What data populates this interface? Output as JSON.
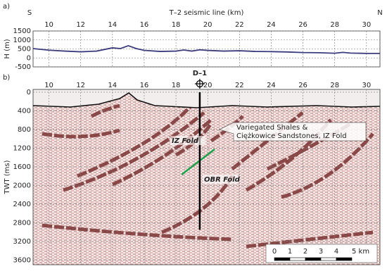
{
  "chart_data": [
    {
      "type": "line",
      "panel_label": "a)",
      "x_label": "T–2 seismic line (km)",
      "y_label": "H (m)",
      "end_labels": [
        "S",
        "N"
      ],
      "x": [
        9,
        10,
        11,
        12,
        13,
        14,
        14.5,
        15,
        15.5,
        16,
        17,
        18,
        18.5,
        19,
        19.5,
        20,
        21,
        22,
        23,
        24,
        25,
        26,
        27,
        28,
        28.5,
        29,
        30,
        30.85
      ],
      "series": [
        {
          "color": "#3b3b7e",
          "values": [
            520,
            430,
            380,
            340,
            380,
            560,
            520,
            680,
            520,
            420,
            360,
            380,
            440,
            380,
            450,
            420,
            380,
            400,
            360,
            350,
            330,
            300,
            290,
            260,
            310,
            270,
            250,
            250
          ]
        }
      ],
      "xlim": [
        9,
        30.85
      ],
      "xticks": [
        10,
        12,
        14,
        16,
        18,
        20,
        22,
        24,
        26,
        28,
        30
      ],
      "ylim": [
        -500,
        1500
      ],
      "yticks": [
        -500,
        0,
        500,
        1000,
        1500
      ],
      "grid": true
    },
    {
      "type": "seismic",
      "panel_label": "b)",
      "y_label": "TWT (ms)",
      "xlim": [
        9,
        30.85
      ],
      "xticks": [
        10,
        12,
        14,
        16,
        18,
        20,
        22,
        24,
        26,
        28,
        30
      ],
      "ylim": [
        3700,
        -60
      ],
      "yticks": [
        0,
        400,
        800,
        1200,
        1600,
        2000,
        2400,
        2800,
        3200,
        3600
      ],
      "grid": true,
      "well": {
        "label": "D–1",
        "x": 19.5,
        "bottom": 2950
      },
      "annotations": {
        "iz": "IZ Fold",
        "obr": "OBR Fold",
        "callout": [
          "Variegated Shales &",
          "Ciężkowice Sandstones, IZ Fold"
        ]
      },
      "scale_bar": [
        "0",
        "1",
        "2",
        "3",
        "4",
        "5 km"
      ]
    }
  ]
}
